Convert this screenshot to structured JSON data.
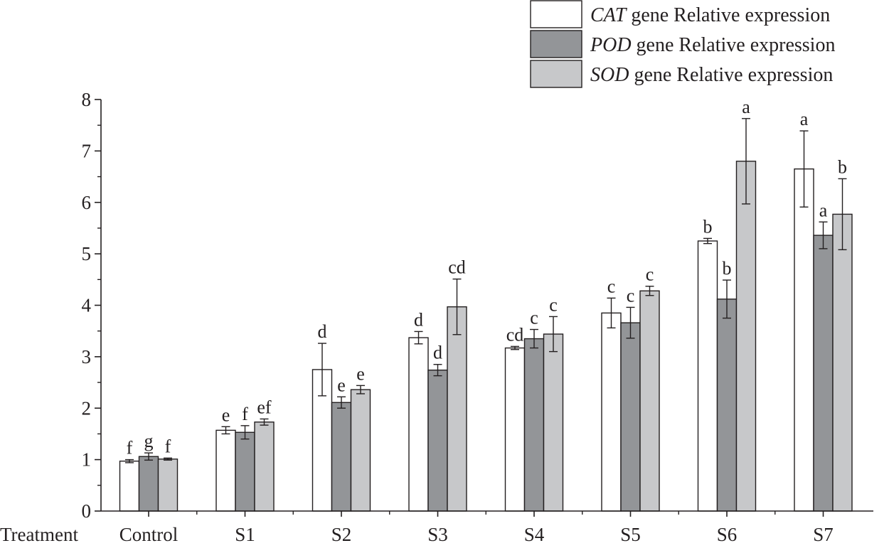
{
  "chart_data": {
    "type": "bar",
    "xlabel": "Treatment",
    "ylabel": "",
    "ylim": [
      0,
      8
    ],
    "yticks": [
      0,
      1,
      2,
      3,
      4,
      5,
      6,
      7,
      8
    ],
    "categories": [
      "Control",
      "S1",
      "S2",
      "S3",
      "S4",
      "S5",
      "S6",
      "S7"
    ],
    "legend_position": "top-right",
    "series": [
      {
        "name": "CAT gene Relative expression",
        "gene": "CAT",
        "suffix": " gene Relative expression",
        "color": "#ffffff",
        "values": [
          0.97,
          1.57,
          2.75,
          3.37,
          3.17,
          3.85,
          5.25,
          6.65
        ],
        "errors": [
          0.03,
          0.07,
          0.51,
          0.12,
          0.03,
          0.29,
          0.05,
          0.74
        ],
        "labels": [
          "f",
          "e",
          "d",
          "d",
          "cd",
          "c",
          "b",
          "a"
        ]
      },
      {
        "name": "POD gene Relative expression",
        "gene": "POD",
        "suffix": " gene Relative expression",
        "color": "#939598",
        "values": [
          1.06,
          1.53,
          2.11,
          2.74,
          3.35,
          3.66,
          4.12,
          5.36
        ],
        "errors": [
          0.07,
          0.13,
          0.11,
          0.11,
          0.18,
          0.3,
          0.37,
          0.26
        ],
        "labels": [
          "g",
          "f",
          "e",
          "d",
          "c",
          "c",
          "b",
          "a"
        ]
      },
      {
        "name": "SOD gene Relative expression",
        "gene": "SOD",
        "suffix": " gene Relative expression",
        "color": "#c7c8ca",
        "values": [
          1.01,
          1.73,
          2.36,
          3.97,
          3.44,
          4.28,
          6.8,
          5.77
        ],
        "errors": [
          0.02,
          0.06,
          0.08,
          0.54,
          0.34,
          0.09,
          0.83,
          0.69
        ],
        "labels": [
          "f",
          "ef",
          "e",
          "cd",
          "c",
          "c",
          "a",
          "b"
        ]
      }
    ]
  }
}
